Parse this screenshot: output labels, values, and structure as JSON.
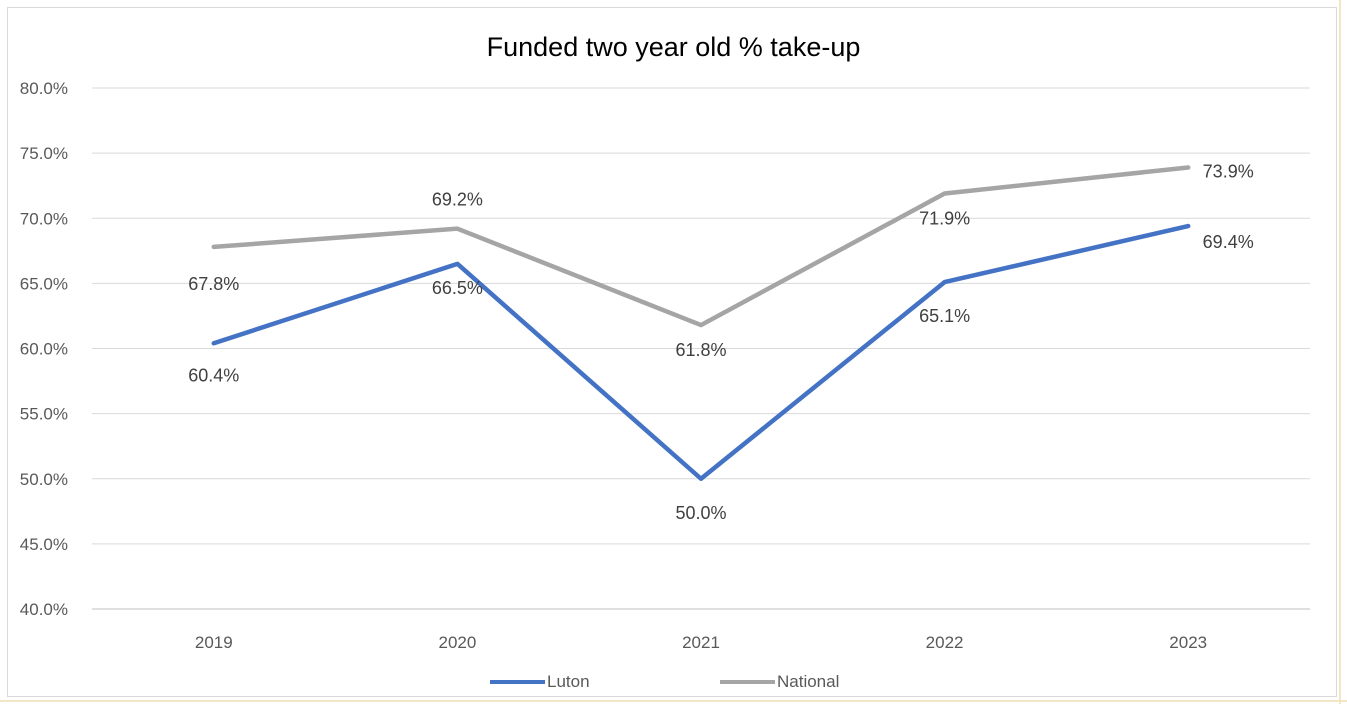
{
  "chart_data": {
    "type": "line",
    "title": "Funded two year old % take-up",
    "categories": [
      "2019",
      "2020",
      "2021",
      "2022",
      "2023"
    ],
    "y_ticks": [
      "80.0%",
      "75.0%",
      "70.0%",
      "65.0%",
      "60.0%",
      "55.0%",
      "50.0%",
      "45.0%",
      "40.0%"
    ],
    "ylim": [
      40,
      80
    ],
    "grid": true,
    "legend_position": "bottom",
    "series": [
      {
        "name": "Luton",
        "color": "#4472c4",
        "values": [
          60.4,
          66.5,
          50.0,
          65.1,
          69.4
        ],
        "labels": [
          "60.4%",
          "66.5%",
          "50.0%",
          "65.1%",
          "69.4%"
        ]
      },
      {
        "name": "National",
        "color": "#a5a5a5",
        "values": [
          67.8,
          69.2,
          61.8,
          71.9,
          73.9
        ],
        "labels": [
          "67.8%",
          "69.2%",
          "61.8%",
          "71.9%",
          "73.9%"
        ]
      }
    ]
  }
}
